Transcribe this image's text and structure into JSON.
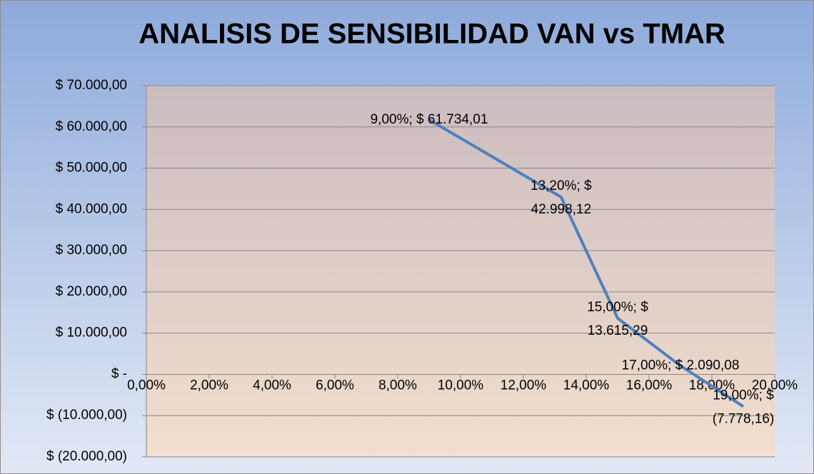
{
  "chart_data": {
    "type": "line",
    "title": "ANALISIS DE SENSIBILIDAD VAN vs TMAR",
    "x": [
      9,
      13.2,
      15,
      17,
      19
    ],
    "series": [
      {
        "color": "#4f81bd",
        "values": [
          61734.01,
          42998.12,
          13615.29,
          2090.08,
          -7778.16
        ],
        "value_labels": [
          [
            "9,00%;  $ 61.734,01"
          ],
          [
            "13,20%;  $",
            "42.998,12"
          ],
          [
            "15,00%;  $",
            "13.615,29"
          ],
          [
            "17,00%;  $ 2.090,08"
          ],
          [
            "19,00%;  $",
            "(7.778,16)"
          ]
        ]
      }
    ],
    "xlim": [
      0,
      20
    ],
    "xticks": [
      {
        "value": 0,
        "label": "0,00%"
      },
      {
        "value": 2,
        "label": "2,00%"
      },
      {
        "value": 4,
        "label": "4,00%"
      },
      {
        "value": 6,
        "label": "6,00%"
      },
      {
        "value": 8,
        "label": "8,00%"
      },
      {
        "value": 10,
        "label": "10,00%"
      },
      {
        "value": 12,
        "label": "12,00%"
      },
      {
        "value": 14,
        "label": "14,00%"
      },
      {
        "value": 16,
        "label": "16,00%"
      },
      {
        "value": 18,
        "label": "18,00%"
      },
      {
        "value": 20,
        "label": "20,00%"
      }
    ],
    "ylim": [
      -20000,
      70000
    ],
    "yticks": [
      {
        "value": -20000,
        "label": "$ (20.000,00)"
      },
      {
        "value": -10000,
        "label": "$ (10.000,00)"
      },
      {
        "value": 0,
        "label": "$ -"
      },
      {
        "value": 10000,
        "label": "$ 10.000,00"
      },
      {
        "value": 20000,
        "label": "$ 20.000,00"
      },
      {
        "value": 30000,
        "label": "$ 30.000,00"
      },
      {
        "value": 40000,
        "label": "$ 40.000,00"
      },
      {
        "value": 50000,
        "label": "$ 50.000,00"
      },
      {
        "value": 60000,
        "label": "$ 60.000,00"
      },
      {
        "value": 70000,
        "label": "$ 70.000,00"
      }
    ],
    "grid": true
  }
}
